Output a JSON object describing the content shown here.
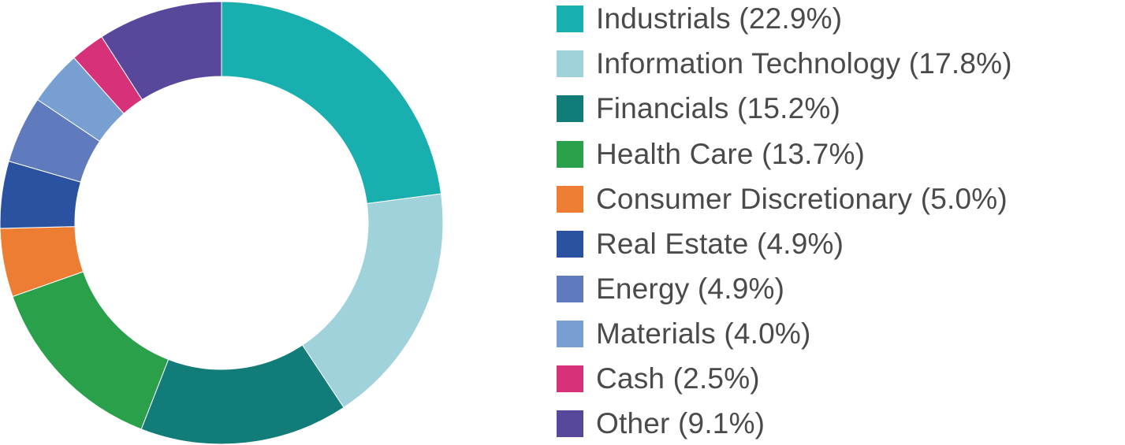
{
  "chart_data": {
    "type": "pie",
    "title": "",
    "legend_position": "right",
    "categories": [
      "Industrials",
      "Information Technology",
      "Financials",
      "Health Care",
      "Consumer Discretionary",
      "Real Estate",
      "Energy",
      "Materials",
      "Cash",
      "Other"
    ],
    "values": [
      22.9,
      17.8,
      15.2,
      13.7,
      5.0,
      4.9,
      4.9,
      4.0,
      2.5,
      9.1
    ],
    "colors": [
      "#1aafaf",
      "#a0d2dc",
      "#127d78",
      "#2aa04b",
      "#ed7d33",
      "#2b52a0",
      "#5f7bbe",
      "#789fd2",
      "#d7317a",
      "#58479a"
    ],
    "legend_labels": [
      "Industrials (22.9%)",
      "Information Technology (17.8%)",
      "Financials (15.2%)",
      "Health Care (13.7%)",
      "Consumer Discretionary (5.0%)",
      "Real Estate (4.9%)",
      "Energy (4.9%)",
      "Materials (4.0%)",
      "Cash (2.5%)",
      "Other (9.1%)"
    ]
  }
}
